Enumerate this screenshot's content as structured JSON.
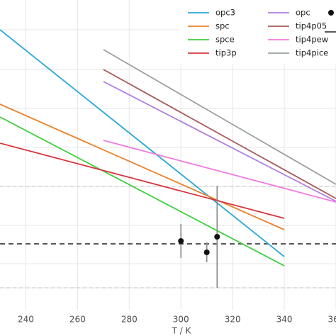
{
  "chart_data": {
    "type": "line",
    "xlabel": "T / K",
    "xlim": [
      230,
      360
    ],
    "ylim": [
      0,
      437
    ],
    "xticks": [
      240,
      260,
      280,
      300,
      320,
      340,
      360
    ],
    "ygrid": [
      395,
      339,
      284,
      229,
      174,
      119,
      65,
      31
    ],
    "grid": true,
    "legend": "upper right",
    "series": [
      {
        "name": "opc3",
        "color": "#2aa7d6",
        "x": [
          230,
          340
        ],
        "values": [
          395,
          75
        ]
      },
      {
        "name": "spc",
        "color": "#e8822a",
        "x": [
          230,
          340
        ],
        "values": [
          290,
          113
        ]
      },
      {
        "name": "spce",
        "color": "#3ccf3c",
        "x": [
          230,
          340
        ],
        "values": [
          272,
          62
        ]
      },
      {
        "name": "tip3p",
        "color": "#d9343c",
        "x": [
          230,
          340
        ],
        "values": [
          235,
          129
        ]
      },
      {
        "name": "opc",
        "color": "#b07fe0",
        "x": [
          270,
          360
        ],
        "values": [
          322,
          153
        ]
      },
      {
        "name": "tip4p05",
        "color": "#a8585a",
        "x": [
          270,
          360
        ],
        "values": [
          339,
          157
        ]
      },
      {
        "name": "tip4pew",
        "color": "#f07ae0",
        "x": [
          270,
          360
        ],
        "values": [
          239,
          152
        ]
      },
      {
        "name": "tip4pice",
        "color": "#9aa0a0",
        "x": [
          270,
          360
        ],
        "values": [
          367,
          177
        ]
      }
    ],
    "points": {
      "color": "#111111",
      "errcolor": "#888888",
      "x": [
        300,
        310,
        314
      ],
      "values": [
        97,
        81,
        103
      ],
      "errors": [
        24,
        14,
        72
      ]
    },
    "hlines": [
      {
        "y": 93,
        "color": "#222222",
        "dash": "7,5"
      },
      {
        "y": 174,
        "color": "#cccccc",
        "dash": "5,4"
      },
      {
        "y": 31,
        "color": "#cccccc",
        "dash": "5,4"
      }
    ]
  }
}
